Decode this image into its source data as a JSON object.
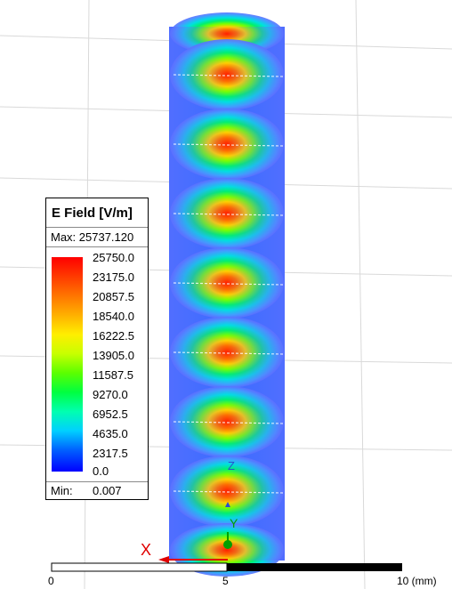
{
  "legend": {
    "title": "E Field [V/m]",
    "max_label": "Max: 25737.120",
    "ticks": [
      "25750.0",
      "23175.0",
      "20857.5",
      "18540.0",
      "16222.5",
      "13905.0",
      "11587.5",
      "9270.0",
      "6952.5",
      "4635.0",
      "2317.5",
      "0.0"
    ],
    "min_label": "Min:",
    "min_value": "0.007"
  },
  "axes": {
    "x_label": "X",
    "y_label": "Y",
    "z_label": "Z",
    "x_color": "#e00000",
    "y_color": "#00a000",
    "z_color": "#2a4fd0"
  },
  "scale_bar": {
    "labels": [
      "0",
      "5",
      "10 (mm)"
    ]
  },
  "colors": {
    "max": "#ff0000",
    "mid": "#ffee00",
    "min": "#0000ff"
  }
}
